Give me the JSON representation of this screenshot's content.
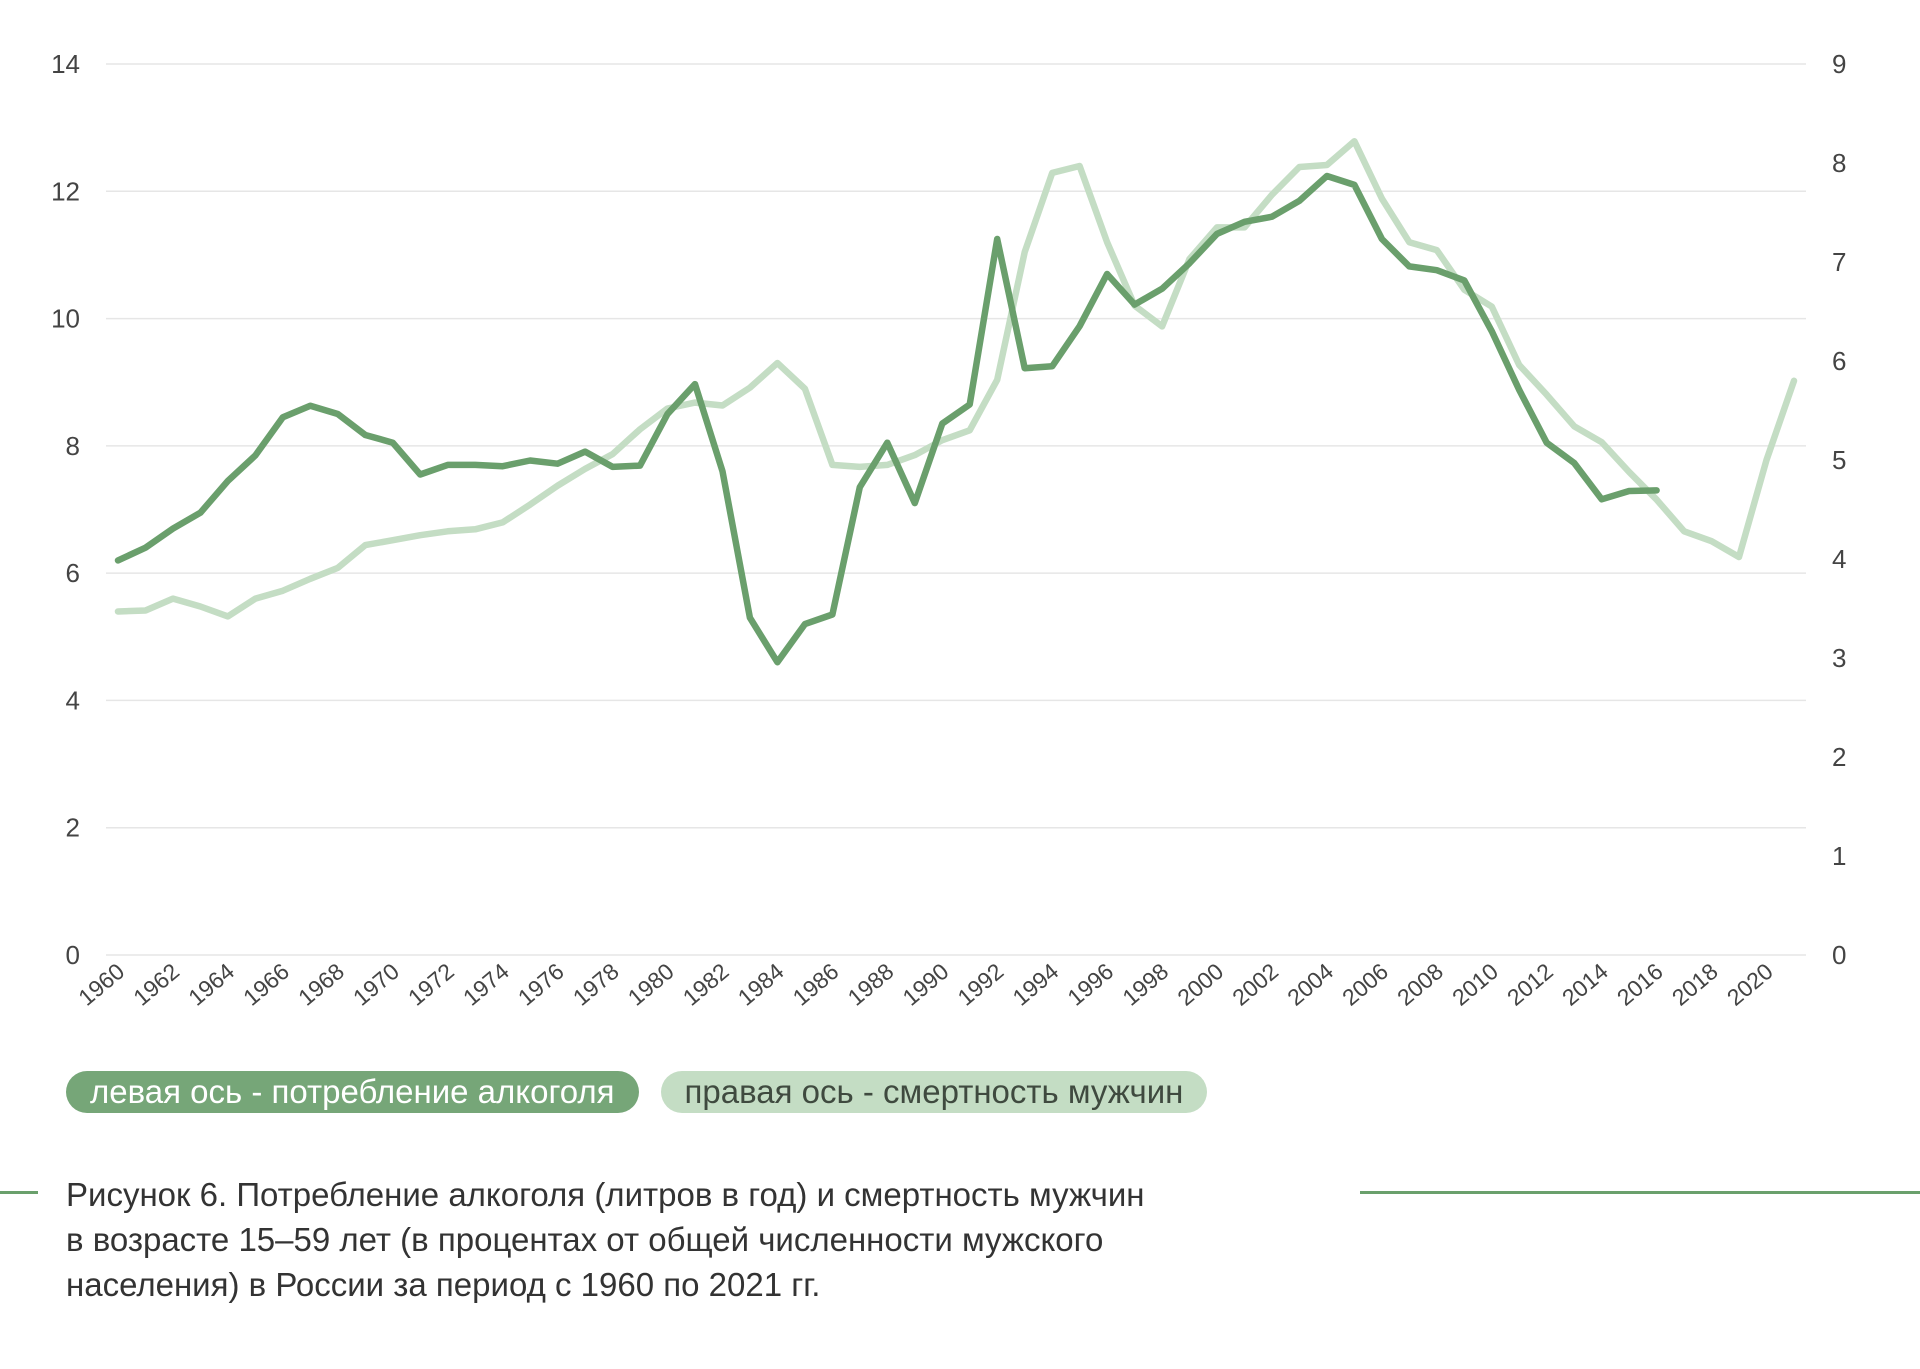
{
  "chart_data": {
    "type": "line",
    "title": "",
    "xlabel": "",
    "ylabel": "",
    "y2label": "",
    "x": [
      1960,
      1961,
      1962,
      1963,
      1964,
      1965,
      1966,
      1967,
      1968,
      1969,
      1970,
      1971,
      1972,
      1973,
      1974,
      1975,
      1976,
      1977,
      1978,
      1979,
      1980,
      1981,
      1982,
      1983,
      1984,
      1985,
      1986,
      1987,
      1988,
      1989,
      1990,
      1991,
      1992,
      1993,
      1994,
      1995,
      1996,
      1997,
      1998,
      1999,
      2000,
      2001,
      2002,
      2003,
      2004,
      2005,
      2006,
      2007,
      2008,
      2009,
      2010,
      2011,
      2012,
      2013,
      2014,
      2015,
      2016,
      2017,
      2018,
      2019,
      2020,
      2021
    ],
    "x_tick_labels": [
      "1960",
      "1962",
      "1964",
      "1966",
      "1968",
      "1970",
      "1972",
      "1974",
      "1976",
      "1978",
      "1980",
      "1982",
      "1984",
      "1986",
      "1988",
      "1990",
      "1992",
      "1994",
      "1996",
      "1998",
      "2000",
      "2002",
      "2004",
      "2006",
      "2008",
      "2010",
      "2012",
      "2014",
      "2016",
      "2018",
      "2020"
    ],
    "ylim": [
      0,
      14
    ],
    "y_ticks": [
      0,
      2,
      4,
      6,
      8,
      10,
      12,
      14
    ],
    "y2lim": [
      0,
      9
    ],
    "y2_ticks": [
      0,
      1,
      2,
      3,
      4,
      5,
      6,
      7,
      8,
      9
    ],
    "grid": true,
    "legend_position": "bottom-left",
    "series": [
      {
        "name": "левая ось - потребление алкоголя",
        "axis": "left",
        "color": "#6a9f6c",
        "values": [
          6.2,
          6.4,
          6.7,
          6.95,
          7.45,
          7.85,
          8.45,
          8.63,
          8.5,
          8.17,
          8.05,
          7.55,
          7.7,
          7.7,
          7.68,
          7.77,
          7.72,
          7.91,
          7.67,
          7.69,
          8.5,
          8.97,
          7.6,
          5.3,
          4.6,
          5.2,
          5.35,
          7.35,
          8.05,
          7.1,
          8.35,
          8.65,
          11.25,
          9.22,
          9.25,
          9.88,
          10.7,
          10.22,
          10.47,
          10.87,
          11.33,
          11.52,
          11.6,
          11.85,
          12.24,
          12.1,
          11.25,
          10.82,
          10.76,
          10.6,
          9.8,
          8.88,
          8.05,
          7.73,
          7.16,
          7.29,
          7.3,
          null,
          null,
          null,
          null,
          null
        ]
      },
      {
        "name": "правая ось - смертность мужчин",
        "axis": "right",
        "color": "#c4ddc4",
        "values": [
          3.47,
          3.48,
          3.6,
          3.52,
          3.42,
          3.6,
          3.68,
          3.8,
          3.91,
          4.14,
          4.19,
          4.24,
          4.28,
          4.3,
          4.37,
          4.55,
          4.74,
          4.91,
          5.06,
          5.31,
          5.52,
          5.58,
          5.55,
          5.73,
          5.98,
          5.72,
          4.95,
          4.93,
          4.95,
          5.05,
          5.2,
          5.3,
          5.81,
          7.1,
          7.9,
          7.97,
          7.2,
          6.56,
          6.35,
          7.03,
          7.35,
          7.35,
          7.68,
          7.96,
          7.98,
          8.22,
          7.64,
          7.2,
          7.12,
          6.72,
          6.55,
          5.96,
          5.66,
          5.34,
          5.18,
          4.88,
          4.6,
          4.28,
          4.18,
          4.02,
          5.0,
          5.8
        ]
      }
    ]
  },
  "legend": {
    "primary_label": "левая ось - потребление алкоголя",
    "secondary_label": "правая ось - смертность мужчин"
  },
  "caption": {
    "line1": "Рисунок 6. Потребление алкоголя (литров в год) и смертность мужчин",
    "line2": "в возрасте 15–59 лет (в процентах от общей численности мужского",
    "line3": "населения) в России за период с 1960 по 2021 гг."
  },
  "colors": {
    "grid": "#e6e6e6",
    "accent_dark": "#6a9f6c",
    "accent_light": "#c4ddc4",
    "caption_rule": "#6aa06c"
  }
}
